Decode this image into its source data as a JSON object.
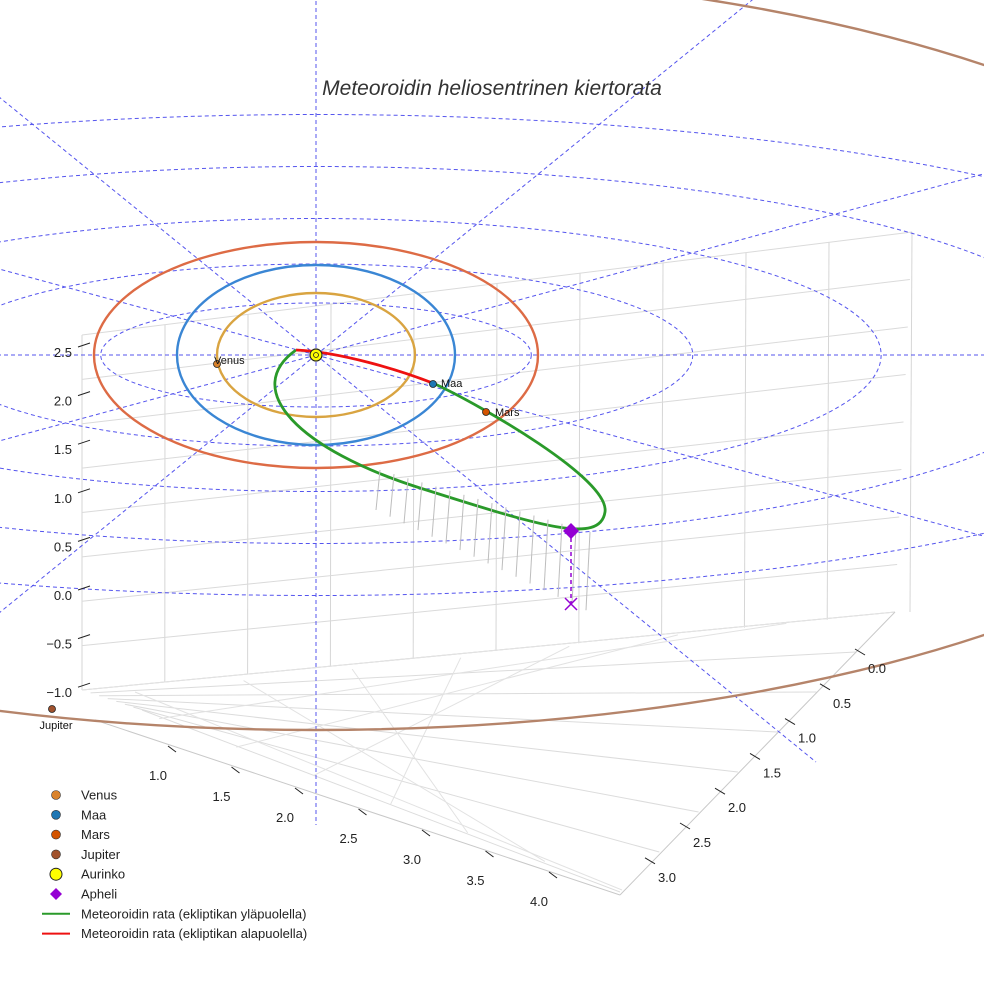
{
  "chart_data": {
    "type": "scatter",
    "title": "Meteoroidin heliosentrinen kiertorata",
    "projection": "3d",
    "axes": {
      "z_ticks": [
        "2.5",
        "2.0",
        "1.5",
        "1.0",
        "0.5",
        "0.0",
        "−0.5",
        "−1.0"
      ],
      "x_ticks": [
        "1.0",
        "1.5",
        "2.0",
        "2.5",
        "3.0",
        "3.5",
        "4.0"
      ],
      "y_ticks": [
        "0.0",
        "0.5",
        "1.0",
        "1.5",
        "2.0",
        "2.5",
        "3.0"
      ]
    },
    "planets": [
      {
        "name": "Venus",
        "orbit_au": 0.72,
        "color": "#d9822b",
        "orbit_color": "#d9a441"
      },
      {
        "name": "Maa",
        "orbit_au": 1.0,
        "color": "#1f77b4",
        "orbit_color": "#3a86d4"
      },
      {
        "name": "Mars",
        "orbit_au": 1.52,
        "color": "#d35400",
        "orbit_color": "#dd6b45"
      },
      {
        "name": "Jupiter",
        "orbit_au": 5.2,
        "color": "#a0522d",
        "orbit_color": "#b5846a"
      }
    ],
    "sun": {
      "name": "Aurinko",
      "color": "#ffff00"
    },
    "aphelion": {
      "name": "Apheli",
      "color": "#9400d3"
    },
    "orbit_series": [
      {
        "name": "Meteoroidin rata (ekliptikan yläpuolella)",
        "color": "#2a9a2a"
      },
      {
        "name": "Meteoroidin rata (ekliptikan alapuolella)",
        "color": "#ee1111"
      }
    ],
    "legend": [
      {
        "label": "Venus",
        "marker": "circle",
        "color": "#d9822b"
      },
      {
        "label": "Maa",
        "marker": "circle",
        "color": "#1f77b4"
      },
      {
        "label": "Mars",
        "marker": "circle",
        "color": "#d35400"
      },
      {
        "label": "Jupiter",
        "marker": "circle",
        "color": "#a0522d"
      },
      {
        "label": "Aurinko",
        "marker": "sun",
        "color": "#ffff00"
      },
      {
        "label": "Apheli",
        "marker": "diamond",
        "color": "#9400d3"
      },
      {
        "label": "Meteoroidin rata (ekliptikan yläpuolella)",
        "marker": "line",
        "color": "#2a9a2a"
      },
      {
        "label": "Meteoroidin rata (ekliptikan alapuolella)",
        "marker": "line",
        "color": "#ee1111"
      }
    ],
    "legend_position": "bottom-left",
    "grid": true
  }
}
